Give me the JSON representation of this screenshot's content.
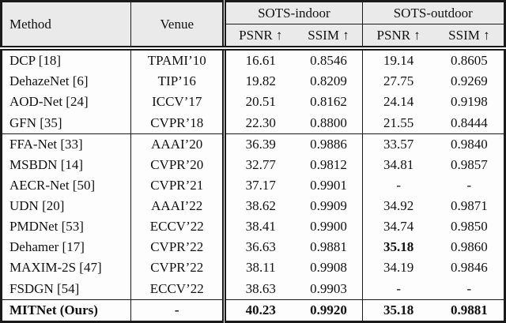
{
  "table": {
    "header": {
      "method": "Method",
      "venue": "Venue",
      "indoor": "SOTS-indoor",
      "outdoor": "SOTS-outdoor",
      "metrics": [
        "PSNR ↑",
        "SSIM ↑",
        "PSNR ↑",
        "SSIM ↑"
      ]
    },
    "rows": [
      {
        "method": "DCP [18]",
        "venue": "TPAMI’10",
        "in_psnr": "16.61",
        "in_ssim": "0.8546",
        "out_psnr": "19.14",
        "out_ssim": "0.8605"
      },
      {
        "method": "DehazeNet [6]",
        "venue": "TIP’16",
        "in_psnr": "19.82",
        "in_ssim": "0.8209",
        "out_psnr": "27.75",
        "out_ssim": "0.9269"
      },
      {
        "method": "AOD-Net [24]",
        "venue": "ICCV’17",
        "in_psnr": "20.51",
        "in_ssim": "0.8162",
        "out_psnr": "24.14",
        "out_ssim": "0.9198"
      },
      {
        "method": "GFN [35]",
        "venue": "CVPR’18",
        "in_psnr": "22.30",
        "in_ssim": "0.8800",
        "out_psnr": "21.55",
        "out_ssim": "0.8444"
      },
      {
        "method": "FFA-Net [33]",
        "venue": "AAAI’20",
        "in_psnr": "36.39",
        "in_ssim": "0.9886",
        "out_psnr": "33.57",
        "out_ssim": "0.9840"
      },
      {
        "method": "MSBDN [14]",
        "venue": "CVPR’20",
        "in_psnr": "32.77",
        "in_ssim": "0.9812",
        "out_psnr": "34.81",
        "out_ssim": "0.9857"
      },
      {
        "method": "AECR-Net [50]",
        "venue": "CVPR’21",
        "in_psnr": "37.17",
        "in_ssim": "0.9901",
        "out_psnr": "-",
        "out_ssim": "-"
      },
      {
        "method": "UDN [20]",
        "venue": "AAAI’22",
        "in_psnr": "38.62",
        "in_ssim": "0.9909",
        "out_psnr": "34.92",
        "out_ssim": "0.9871"
      },
      {
        "method": "PMDNet [53]",
        "venue": "ECCV’22",
        "in_psnr": "38.41",
        "in_ssim": "0.9900",
        "out_psnr": "34.74",
        "out_ssim": "0.9850"
      },
      {
        "method": "Dehamer [17]",
        "venue": "CVPR’22",
        "in_psnr": "36.63",
        "in_ssim": "0.9881",
        "out_psnr": "35.18",
        "out_ssim": "0.9860"
      },
      {
        "method": "MAXIM-2S [47]",
        "venue": "CVPR’22",
        "in_psnr": "38.11",
        "in_ssim": "0.9908",
        "out_psnr": "34.19",
        "out_ssim": "0.9846"
      },
      {
        "method": "FSDGN [54]",
        "venue": "ECCV’22",
        "in_psnr": "38.63",
        "in_ssim": "0.9903",
        "out_psnr": "-",
        "out_ssim": "-"
      },
      {
        "method": "MITNet (Ours)",
        "venue": "-",
        "in_psnr": "40.23",
        "in_ssim": "0.9920",
        "out_psnr": "35.18",
        "out_ssim": "0.9881"
      }
    ]
  },
  "colors": {
    "border": "#1a1a1a",
    "header_background": "#eaeaea",
    "body_background": "#fdfdfd",
    "text": "#111111"
  }
}
